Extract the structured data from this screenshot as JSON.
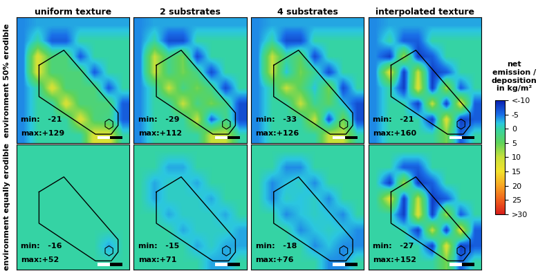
{
  "chart_data": {
    "type": "heatmap_grid",
    "columns": [
      "uniform texture",
      "2 substrates",
      "4 substrates",
      "interpolated texture"
    ],
    "rows": [
      "environment 50% erodible",
      "environment equally erodible"
    ],
    "min_prefix": "min:",
    "max_prefix": "max:",
    "tick_labels": false,
    "panels": [
      [
        {
          "min": -21,
          "max": 129,
          "max_label": "+129",
          "cells": [
            [
              -4,
              -3,
              -3,
              -3,
              -3,
              -3,
              -3,
              -3
            ],
            [
              -4,
              0,
              -6,
              -6,
              0,
              0,
              0,
              0
            ],
            [
              -4,
              12,
              3,
              3,
              -6,
              0,
              0,
              0
            ],
            [
              -4,
              12,
              3,
              3,
              3,
              -6,
              0,
              0
            ],
            [
              -4,
              0,
              12,
              3,
              3,
              3,
              -6,
              0
            ],
            [
              -4,
              0,
              0,
              12,
              3,
              3,
              3,
              -6
            ],
            [
              -4,
              0,
              0,
              0,
              12,
              3,
              2,
              -6
            ],
            [
              -4,
              0,
              0,
              0,
              0,
              12,
              12,
              0
            ]
          ]
        },
        {
          "min": -29,
          "max": 112,
          "max_label": "+112",
          "cells": [
            [
              -4,
              -3,
              -3,
              -3,
              -3,
              -3,
              -3,
              -3
            ],
            [
              -4,
              0,
              -7,
              -7,
              0,
              0,
              0,
              0
            ],
            [
              -4,
              10,
              2,
              6,
              -7,
              0,
              0,
              0
            ],
            [
              -4,
              10,
              2,
              6,
              2,
              -7,
              0,
              0
            ],
            [
              -4,
              0,
              10,
              2,
              6,
              2,
              -7,
              0
            ],
            [
              -4,
              0,
              0,
              10,
              2,
              6,
              2,
              -7
            ],
            [
              -4,
              0,
              0,
              0,
              10,
              -6,
              2,
              -7
            ],
            [
              -4,
              0,
              0,
              0,
              0,
              10,
              10,
              0
            ]
          ]
        },
        {
          "min": -33,
          "max": 126,
          "max_label": "+126",
          "cells": [
            [
              -4,
              -3,
              -3,
              -3,
              -3,
              -3,
              -3,
              -3
            ],
            [
              -4,
              0,
              -7,
              -7,
              0,
              0,
              0,
              0
            ],
            [
              -4,
              10,
              1,
              4,
              -7,
              0,
              0,
              0
            ],
            [
              -4,
              10,
              -2,
              6,
              1,
              -7,
              0,
              0
            ],
            [
              -4,
              0,
              10,
              4,
              -2,
              6,
              -7,
              0
            ],
            [
              -4,
              0,
              0,
              10,
              1,
              4,
              -2,
              -7
            ],
            [
              -4,
              0,
              0,
              0,
              10,
              -7,
              6,
              -7
            ],
            [
              -4,
              0,
              0,
              0,
              0,
              10,
              10,
              0
            ]
          ]
        },
        {
          "min": -21,
          "max": 160,
          "max_label": "+160",
          "cells": [
            [
              -4,
              -3,
              -3,
              -3,
              -3,
              -3,
              -3,
              -3
            ],
            [
              -4,
              0,
              -6,
              -6,
              0,
              0,
              0,
              0
            ],
            [
              -4,
              -8,
              8,
              -8,
              -6,
              0,
              0,
              0
            ],
            [
              -4,
              12,
              -8,
              10,
              -8,
              -6,
              0,
              0
            ],
            [
              -4,
              0,
              -8,
              12,
              -8,
              8,
              -6,
              0
            ],
            [
              -4,
              0,
              0,
              -8,
              10,
              -8,
              12,
              -6
            ],
            [
              -4,
              0,
              0,
              0,
              -8,
              12,
              -8,
              -6
            ],
            [
              -4,
              0,
              0,
              0,
              0,
              6,
              -6,
              0
            ]
          ]
        }
      ],
      [
        {
          "min": -16,
          "max": 52,
          "max_label": "+52",
          "cells": [
            [
              0,
              0,
              0,
              0,
              0,
              0,
              0,
              0
            ],
            [
              0,
              0,
              0,
              0,
              0,
              0,
              0,
              0
            ],
            [
              0,
              0,
              0,
              0,
              0,
              0,
              0,
              0
            ],
            [
              0,
              0,
              0,
              0,
              0,
              0,
              0,
              0
            ],
            [
              0,
              0,
              0,
              0,
              0,
              0,
              0,
              0
            ],
            [
              0,
              0,
              0,
              0,
              0,
              0,
              0,
              0
            ],
            [
              0,
              0,
              0,
              0,
              0,
              0,
              -3,
              0
            ],
            [
              0,
              0,
              0,
              0,
              0,
              0,
              0,
              0
            ]
          ]
        },
        {
          "min": -15,
          "max": 71,
          "max_label": "+71",
          "cells": [
            [
              0,
              0,
              0,
              0,
              0,
              0,
              0,
              0
            ],
            [
              0,
              0,
              -3,
              -3,
              0,
              0,
              0,
              0
            ],
            [
              0,
              -3,
              -1,
              -1,
              -3,
              0,
              0,
              0
            ],
            [
              0,
              -3,
              -1,
              -1,
              -1,
              -3,
              0,
              0
            ],
            [
              0,
              0,
              -3,
              -1,
              -1,
              -1,
              -3,
              0
            ],
            [
              0,
              0,
              0,
              -3,
              -1,
              -1,
              -1,
              -3
            ],
            [
              0,
              0,
              0,
              0,
              -3,
              -1,
              -3,
              -3
            ],
            [
              0,
              0,
              0,
              0,
              0,
              -3,
              -3,
              0
            ]
          ]
        },
        {
          "min": -18,
          "max": 76,
          "max_label": "+76",
          "cells": [
            [
              0,
              0,
              0,
              0,
              0,
              0,
              0,
              0
            ],
            [
              0,
              0,
              -4,
              -4,
              0,
              0,
              0,
              0
            ],
            [
              0,
              -4,
              -2,
              -1,
              -4,
              0,
              0,
              0
            ],
            [
              0,
              -4,
              -1,
              -2,
              -1,
              -4,
              0,
              0
            ],
            [
              0,
              0,
              -4,
              -2,
              -1,
              -2,
              -4,
              0
            ],
            [
              0,
              0,
              0,
              -4,
              -2,
              -1,
              -2,
              -4
            ],
            [
              0,
              0,
              0,
              0,
              -4,
              -2,
              -4,
              -4
            ],
            [
              0,
              0,
              0,
              0,
              0,
              -4,
              -4,
              0
            ]
          ]
        },
        {
          "min": -27,
          "max": 152,
          "max_label": "+152",
          "cells": [
            [
              0,
              0,
              0,
              0,
              0,
              0,
              0,
              0
            ],
            [
              0,
              0,
              -6,
              -6,
              0,
              0,
              0,
              0
            ],
            [
              0,
              -8,
              8,
              -8,
              -6,
              0,
              0,
              0
            ],
            [
              0,
              12,
              -8,
              10,
              -8,
              -6,
              0,
              0
            ],
            [
              0,
              0,
              -8,
              12,
              -8,
              8,
              -6,
              0
            ],
            [
              0,
              0,
              0,
              -8,
              10,
              -8,
              12,
              -6
            ],
            [
              0,
              0,
              0,
              0,
              -8,
              12,
              -8,
              -6
            ],
            [
              0,
              0,
              0,
              0,
              0,
              6,
              -6,
              0
            ]
          ]
        }
      ]
    ],
    "colorbar": {
      "label": "net\nemission /\ndeposition\nin kg/m²",
      "range": [
        -10,
        30
      ],
      "ticks": [
        {
          "value": -10,
          "label": "<-10"
        },
        -5,
        0,
        5,
        10,
        15,
        20,
        25,
        {
          "value": 30,
          "label": ">30"
        }
      ]
    }
  }
}
